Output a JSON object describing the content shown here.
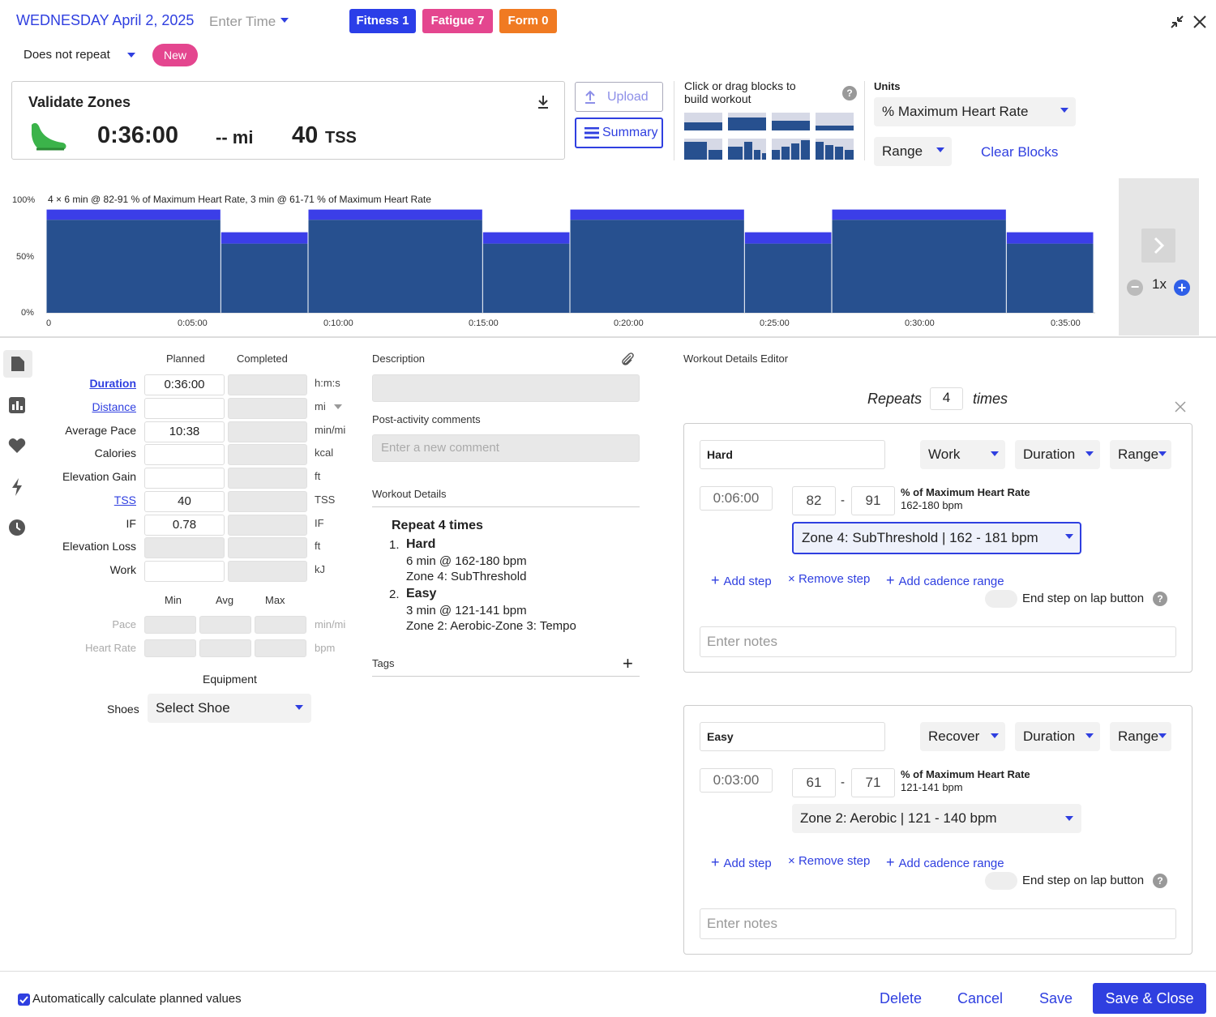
{
  "header": {
    "date": "WEDNESDAY April 2, 2025",
    "time_placeholder": "Enter Time",
    "fitness": "Fitness 1",
    "fatigue": "Fatigue 7",
    "form": "Form 0",
    "repeat": "Does not repeat",
    "new_badge": "New",
    "colors": {
      "fitness": "#2b3ee8",
      "fatigue": "#e4468f",
      "form": "#f07a22"
    }
  },
  "summary": {
    "title": "Validate Zones",
    "duration": "0:36:00",
    "distance": "-- mi",
    "tss_value": "40",
    "tss_unit": "TSS",
    "upload": "Upload",
    "summary_btn": "Summary"
  },
  "builder": {
    "hint": "Click or drag blocks to build workout",
    "units_label": "Units",
    "units_value": "% Maximum Heart Rate",
    "range": "Range",
    "clear": "Clear Blocks",
    "zoom": "1x"
  },
  "chart_data": {
    "type": "bar",
    "title": "4 × 6 min @ 82-91 % of Maximum Heart Rate, 3 min @ 61-71 % of Maximum Heart Rate",
    "yticks": [
      "100%",
      "50%",
      "0%"
    ],
    "xticks": [
      "0",
      "0:05:00",
      "0:10:00",
      "0:15:00",
      "0:20:00",
      "0:25:00",
      "0:30:00",
      "0:35:00"
    ],
    "x_range_minutes": [
      0,
      36
    ],
    "y_range_percent": [
      0,
      100
    ],
    "steps": [
      {
        "start": 0,
        "duration": 6,
        "low": 82,
        "high": 91
      },
      {
        "start": 6,
        "duration": 3,
        "low": 61,
        "high": 71
      },
      {
        "start": 9,
        "duration": 6,
        "low": 82,
        "high": 91
      },
      {
        "start": 15,
        "duration": 3,
        "low": 61,
        "high": 71
      },
      {
        "start": 18,
        "duration": 6,
        "low": 82,
        "high": 91
      },
      {
        "start": 24,
        "duration": 3,
        "low": 61,
        "high": 71
      },
      {
        "start": 27,
        "duration": 6,
        "low": 82,
        "high": 91
      },
      {
        "start": 33,
        "duration": 3,
        "low": 61,
        "high": 71
      }
    ],
    "colors": {
      "body": "#27508f",
      "cap": "#3b3ee8"
    }
  },
  "stats": {
    "planned": "Planned",
    "completed": "Completed",
    "rows": [
      {
        "label": "Duration",
        "planned": "0:36:00",
        "unit": "h:m:s"
      },
      {
        "label": "Distance",
        "planned": "",
        "unit": "mi"
      },
      {
        "label": "Average Pace",
        "planned": "10:38",
        "unit": "min/mi"
      },
      {
        "label": "Calories",
        "planned": "",
        "unit": "kcal"
      },
      {
        "label": "Elevation Gain",
        "planned": "",
        "unit": "ft"
      },
      {
        "label": "TSS",
        "planned": "40",
        "unit": "TSS"
      },
      {
        "label": "IF",
        "planned": "0.78",
        "unit": "IF"
      },
      {
        "label": "Elevation Loss",
        "planned": "",
        "unit": "ft"
      },
      {
        "label": "Work",
        "planned": "",
        "unit": "kJ"
      }
    ],
    "min": "Min",
    "avg": "Avg",
    "max": "Max",
    "pace": "Pace",
    "pace_unit": "min/mi",
    "hr": "Heart Rate",
    "hr_unit": "bpm",
    "equipment": "Equipment",
    "shoes": "Shoes",
    "shoe_select": "Select Shoe"
  },
  "description": {
    "label": "Description",
    "post": "Post-activity comments",
    "comment_placeholder": "Enter a new comment",
    "details_label": "Workout Details",
    "repeat": "Repeat 4 times",
    "s1_num": "1.",
    "s1_name": "Hard",
    "s1_l1": "6 min @ 162-180 bpm",
    "s1_l2": "Zone 4: SubThreshold",
    "s2_num": "2.",
    "s2_name": "Easy",
    "s2_l1": "3 min @ 121-141 bpm",
    "s2_l2": "Zone 2: Aerobic-Zone 3: Tempo",
    "tags": "Tags"
  },
  "editor": {
    "title": "Workout Details Editor",
    "repeats": "Repeats",
    "repeat_count": "4",
    "times": "times",
    "steps": [
      {
        "name": "Hard",
        "type": "Work",
        "duration_type": "Duration",
        "range": "Range",
        "duration": "0:06:00",
        "low": "82",
        "high": "91",
        "unit": "% of Maximum Heart Rate",
        "bpm": "162-180 bpm",
        "zone": "Zone 4: SubThreshold | 162 - 181 bpm"
      },
      {
        "name": "Easy",
        "type": "Recover",
        "duration_type": "Duration",
        "range": "Range",
        "duration": "0:03:00",
        "low": "61",
        "high": "71",
        "unit": "% of Maximum Heart Rate",
        "bpm": "121-141 bpm",
        "zone": "Zone 2: Aerobic | 121 - 140 bpm"
      }
    ],
    "add_step": "Add step",
    "remove_step": "Remove step",
    "add_cadence": "Add cadence range",
    "end_lap": "End step on lap button",
    "notes_placeholder": "Enter notes"
  },
  "footer": {
    "auto_calc": "Automatically calculate planned values",
    "delete": "Delete",
    "cancel": "Cancel",
    "save": "Save",
    "save_close": "Save & Close"
  }
}
